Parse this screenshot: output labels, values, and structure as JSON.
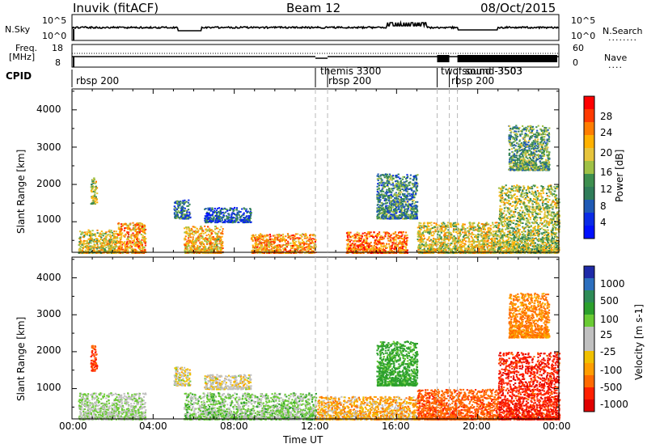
{
  "header": {
    "station": "Inuvik  (fitACF)",
    "beam": "Beam 12",
    "date": "08/Oct/2015"
  },
  "top_panel": {
    "left_label": "N.Sky",
    "left_ticks": [
      "10^5",
      "10^0"
    ],
    "right_ticks": [
      "10^5",
      "10^0"
    ],
    "right_label": "N.Search",
    "right_label_dots": "........"
  },
  "freq_panel": {
    "left_label_1": "Freq.",
    "left_label_2": "[MHz]",
    "left_ticks": [
      "18",
      "8"
    ],
    "right_ticks": [
      "60",
      "0"
    ],
    "right_label": "Nave",
    "right_label_dots": "...."
  },
  "cpid": {
    "label": "CPID",
    "names": [
      "rbsp 200",
      "themis 3300",
      "rbsp 200",
      "twofsound -3503",
      "rbsp 200",
      "sound 3503"
    ]
  },
  "axes": {
    "x_ticks": [
      "00:00",
      "04:00",
      "08:00",
      "12:00",
      "16:00",
      "20:00",
      "00:00"
    ],
    "x_label": "Time UT",
    "y_label": "Slant Range [km]",
    "y_ticks": [
      "1000",
      "2000",
      "3000",
      "4000"
    ]
  },
  "power_scale": {
    "label": "Power [dB]",
    "ticks": [
      "28",
      "24",
      "20",
      "16",
      "12",
      "8",
      "4"
    ],
    "colors": [
      "#ff0000",
      "#ff3a00",
      "#ff7d00",
      "#ffb100",
      "#e6c43c",
      "#9fc146",
      "#3e8f4f",
      "#307d5a",
      "#1f5ab5",
      "#0a2be6",
      "#0010ff"
    ]
  },
  "velocity_scale": {
    "label": "Velocity [m s-1]",
    "ticks": [
      "1000",
      "500",
      "100",
      "25",
      "-25",
      "-100",
      "-500",
      "-1000"
    ],
    "colors": [
      "#1e2aa8",
      "#2c6fbe",
      "#2e8b57",
      "#2ca02c",
      "#6acb34",
      "#c0c0c0",
      "#c0c0c0",
      "#f0c000",
      "#ff9d00",
      "#ff6a00",
      "#ff2000",
      "#e00000"
    ]
  },
  "chart_data": [
    {
      "type": "heatmap",
      "title": "Power",
      "xlabel": "Time UT",
      "ylabel": "Slant Range [km]",
      "xlim": [
        0,
        24
      ],
      "ylim": [
        180,
        4560
      ],
      "value_label": "Power [dB]",
      "value_range": [
        0,
        30
      ],
      "features": [
        {
          "t0": 0.3,
          "t1": 2.2,
          "r0": 180,
          "r1": 800,
          "value": 18
        },
        {
          "t0": 0.9,
          "t1": 1.2,
          "r0": 1500,
          "r1": 2200,
          "value": 16
        },
        {
          "t0": 2.2,
          "t1": 3.6,
          "r0": 180,
          "r1": 1000,
          "value": 22
        },
        {
          "t0": 5.0,
          "t1": 5.8,
          "r0": 1100,
          "r1": 1600,
          "value": 8
        },
        {
          "t0": 5.5,
          "t1": 7.4,
          "r0": 180,
          "r1": 900,
          "value": 20
        },
        {
          "t0": 6.5,
          "t1": 8.8,
          "r0": 1000,
          "r1": 1400,
          "value": 6
        },
        {
          "t0": 8.8,
          "t1": 12.0,
          "r0": 180,
          "r1": 700,
          "value": 22
        },
        {
          "t0": 13.5,
          "t1": 16.5,
          "r0": 180,
          "r1": 750,
          "value": 24
        },
        {
          "t0": 15.0,
          "t1": 17.0,
          "r0": 1100,
          "r1": 2300,
          "value": 10
        },
        {
          "t0": 17.0,
          "t1": 21.0,
          "r0": 180,
          "r1": 1000,
          "value": 18
        },
        {
          "t0": 21.0,
          "t1": 24.0,
          "r0": 180,
          "r1": 2000,
          "value": 16
        },
        {
          "t0": 21.5,
          "t1": 23.5,
          "r0": 2400,
          "r1": 3600,
          "value": 12
        }
      ]
    },
    {
      "type": "heatmap",
      "title": "Velocity",
      "xlabel": "Time UT",
      "ylabel": "Slant Range [km]",
      "xlim": [
        0,
        24
      ],
      "ylim": [
        180,
        4560
      ],
      "value_label": "Velocity [m s-1]",
      "value_range": [
        -1000,
        1000
      ],
      "features": [
        {
          "t0": 0.3,
          "t1": 3.6,
          "r0": 180,
          "r1": 900,
          "value": 40
        },
        {
          "t0": 0.9,
          "t1": 1.2,
          "r0": 1500,
          "r1": 2200,
          "value": -300
        },
        {
          "t0": 5.0,
          "t1": 5.8,
          "r0": 1100,
          "r1": 1600,
          "value": 0
        },
        {
          "t0": 6.5,
          "t1": 8.8,
          "r0": 1000,
          "r1": 1400,
          "value": 0
        },
        {
          "t0": 5.5,
          "t1": 12.0,
          "r0": 180,
          "r1": 900,
          "value": 60
        },
        {
          "t0": 12.0,
          "t1": 17.0,
          "r0": 180,
          "r1": 800,
          "value": -60
        },
        {
          "t0": 15.0,
          "t1": 17.0,
          "r0": 1100,
          "r1": 2300,
          "value": 150
        },
        {
          "t0": 17.0,
          "t1": 21.0,
          "r0": 180,
          "r1": 1000,
          "value": -200
        },
        {
          "t0": 21.0,
          "t1": 24.0,
          "r0": 180,
          "r1": 2000,
          "value": -400
        },
        {
          "t0": 21.5,
          "t1": 23.5,
          "r0": 2400,
          "r1": 3600,
          "value": -100
        }
      ]
    }
  ]
}
